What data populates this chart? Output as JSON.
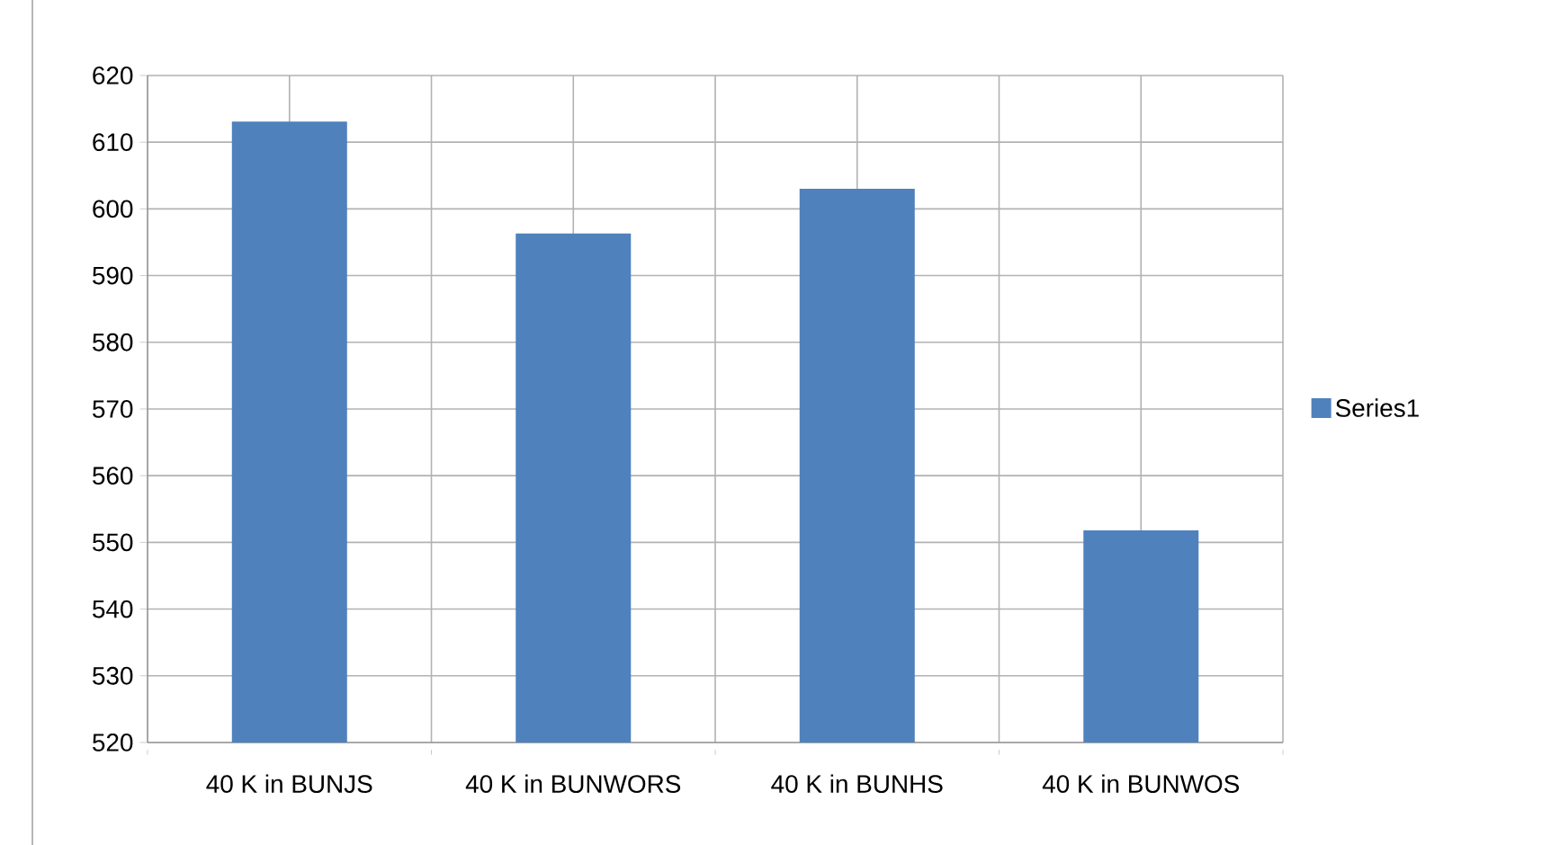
{
  "chart_data": {
    "type": "bar",
    "categories": [
      "40 K in BUNJS",
      "40 K in BUNWORS",
      "40 K in BUNHS",
      "40 K in BUNWOS"
    ],
    "series": [
      {
        "name": "Series1",
        "color": "#4f81bd",
        "values": [
          613.1,
          596.3,
          603,
          551.8
        ]
      }
    ],
    "ylim": [
      520,
      620
    ],
    "yticks": [
      520,
      530,
      540,
      550,
      560,
      570,
      580,
      590,
      600,
      610,
      620
    ],
    "grid": true,
    "legend": "right"
  }
}
